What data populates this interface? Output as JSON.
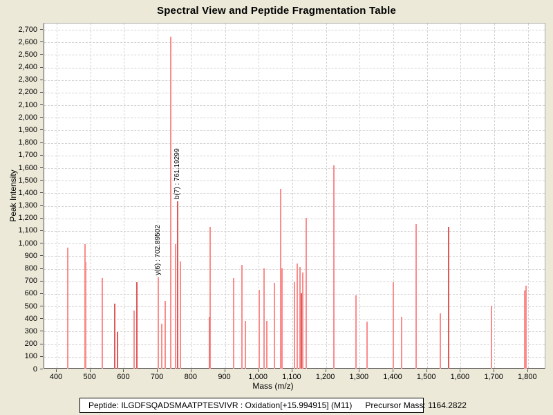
{
  "title": "Spectral View and Peptide Fragmentation Table",
  "chart_data": {
    "type": "bar",
    "subtype": "mass-spectrum-stick-plot",
    "title": "Spectral View and Peptide Fragmentation Table",
    "xlabel": "Mass (m/z)",
    "ylabel": "Peak Intensity",
    "xlim": [
      363,
      1853
    ],
    "ylim": [
      0,
      2700
    ],
    "grid": true,
    "x_ticks": [
      400,
      500,
      600,
      700,
      800,
      900,
      1000,
      1100,
      1200,
      1300,
      1400,
      1500,
      1600,
      1700,
      1800
    ],
    "y_tick_step": 100,
    "peaks": [
      {
        "mz": 434,
        "intensity": 960
      },
      {
        "mz": 486,
        "intensity": 990
      },
      {
        "mz": 488,
        "intensity": 845
      },
      {
        "mz": 538,
        "intensity": 720
      },
      {
        "mz": 575,
        "intensity": 515,
        "shade": "dark"
      },
      {
        "mz": 583,
        "intensity": 290,
        "shade": "dark"
      },
      {
        "mz": 633,
        "intensity": 460
      },
      {
        "mz": 641,
        "intensity": 685,
        "shade": "dark"
      },
      {
        "mz": 702.89502,
        "intensity": 725
      },
      {
        "mz": 714,
        "intensity": 360
      },
      {
        "mz": 724,
        "intensity": 540
      },
      {
        "mz": 741,
        "intensity": 2640
      },
      {
        "mz": 755,
        "intensity": 990
      },
      {
        "mz": 761.19299,
        "intensity": 1330,
        "shade": "dark"
      },
      {
        "mz": 770,
        "intensity": 850
      },
      {
        "mz": 855,
        "intensity": 415,
        "shade": "dark"
      },
      {
        "mz": 857,
        "intensity": 1130
      },
      {
        "mz": 928,
        "intensity": 720
      },
      {
        "mz": 953,
        "intensity": 825
      },
      {
        "mz": 962,
        "intensity": 380
      },
      {
        "mz": 1004,
        "intensity": 625
      },
      {
        "mz": 1019,
        "intensity": 795
      },
      {
        "mz": 1026,
        "intensity": 380
      },
      {
        "mz": 1048,
        "intensity": 680
      },
      {
        "mz": 1067,
        "intensity": 1430
      },
      {
        "mz": 1072,
        "intensity": 800
      },
      {
        "mz": 1108,
        "intensity": 690
      },
      {
        "mz": 1117,
        "intensity": 835
      },
      {
        "mz": 1124,
        "intensity": 810
      },
      {
        "mz": 1129,
        "intensity": 600,
        "shade": "dark"
      },
      {
        "mz": 1133,
        "intensity": 765
      },
      {
        "mz": 1144,
        "intensity": 1200
      },
      {
        "mz": 1225,
        "intensity": 1615
      },
      {
        "mz": 1291,
        "intensity": 585
      },
      {
        "mz": 1324,
        "intensity": 375
      },
      {
        "mz": 1403,
        "intensity": 690
      },
      {
        "mz": 1427,
        "intensity": 410
      },
      {
        "mz": 1470,
        "intensity": 1150
      },
      {
        "mz": 1541,
        "intensity": 440
      },
      {
        "mz": 1566,
        "intensity": 1125,
        "shade": "dark"
      },
      {
        "mz": 1694,
        "intensity": 500
      },
      {
        "mz": 1793,
        "intensity": 620
      },
      {
        "mz": 1796,
        "intensity": 660
      }
    ],
    "annotations": [
      {
        "label": "y(6) : 702.89502",
        "mz": 702.89502,
        "intensity": 725
      },
      {
        "label": "b(7) : 761.19299",
        "mz": 761.19299,
        "intensity": 1330
      }
    ],
    "colors": {
      "background": "#ece9d8",
      "plot_background": "#ffffff",
      "peak_light": "#FA8C8C",
      "peak_dark": "#E05858",
      "gridline": "#d2d2d2",
      "axis": "#4d4d4d",
      "text": "#000000"
    }
  },
  "footer": {
    "peptide_label": "Peptide: ILGDFSQADSMAATPTESVIVR : Oxidation[+15.994915] (M11)",
    "precursor_label": "Precursor Mass: 1164.2822"
  }
}
